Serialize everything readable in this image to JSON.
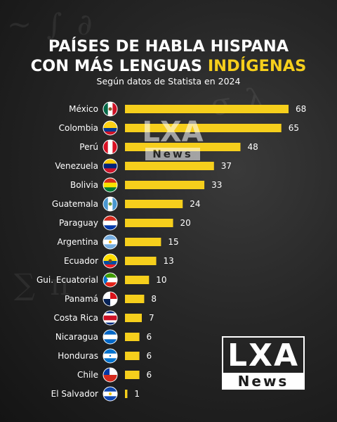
{
  "title": {
    "line1": "PAÍSES DE HABLA HISPANA",
    "line2_prefix": "CON MÁS LENGUAS ",
    "line2_highlight": "INDÍGENAS"
  },
  "subtitle": "Según datos de Statista en 2024",
  "colors": {
    "accent": "#f6cf1c",
    "text": "#ffffff",
    "background": "#1c1c1c"
  },
  "chart_data": {
    "type": "bar",
    "orientation": "horizontal",
    "categories": [
      "México",
      "Colombia",
      "Perú",
      "Venezuela",
      "Bolivia",
      "Guatemala",
      "Paraguay",
      "Argentina",
      "Ecuador",
      "Gui. Ecuatorial",
      "Panamá",
      "Costa Rica",
      "Nicaragua",
      "Honduras",
      "Chile",
      "El Salvador"
    ],
    "values": [
      68,
      65,
      48,
      37,
      33,
      24,
      20,
      15,
      13,
      10,
      8,
      7,
      6,
      6,
      6,
      1
    ],
    "flag_icons": [
      "mexico-flag-icon",
      "colombia-flag-icon",
      "peru-flag-icon",
      "venezuela-flag-icon",
      "bolivia-flag-icon",
      "guatemala-flag-icon",
      "paraguay-flag-icon",
      "argentina-flag-icon",
      "ecuador-flag-icon",
      "equatorial-guinea-flag-icon",
      "panama-flag-icon",
      "costa-rica-flag-icon",
      "nicaragua-flag-icon",
      "honduras-flag-icon",
      "chile-flag-icon",
      "el-salvador-flag-icon"
    ],
    "xlim": [
      0,
      68
    ],
    "grid": false,
    "legend": "none"
  },
  "watermark": {
    "line1": "LXA",
    "line2": "News"
  },
  "logo": {
    "line1": "LXA",
    "line2": "News"
  }
}
